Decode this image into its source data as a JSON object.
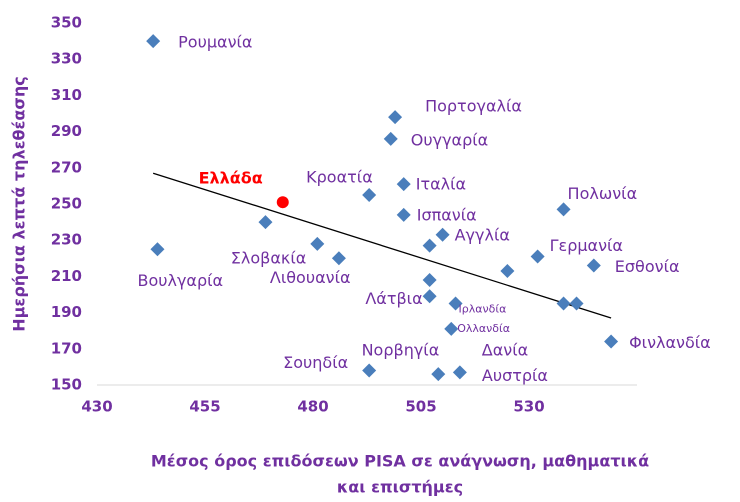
{
  "chart_data": {
    "type": "scatter",
    "x_label": "Μέσος όρος επιδόσεων PISA  σε ανάγνωση, μαθηματικά",
    "x_label_line2": "και επιστήμες",
    "y_label": "Ημερήσια λεπτά τηλεθέασης",
    "xlim": [
      430,
      555
    ],
    "xticks": [
      430,
      455,
      480,
      505,
      530
    ],
    "ylim": [
      150,
      350
    ],
    "yticks": [
      150,
      170,
      190,
      210,
      230,
      250,
      270,
      290,
      310,
      330,
      350
    ],
    "series": [
      {
        "color": "#4a7ebb",
        "x": [
          443,
          499,
          498,
          493,
          501,
          473,
          501,
          538,
          469,
          444,
          481,
          486,
          507,
          510,
          532,
          545,
          525,
          507,
          507,
          513,
          538,
          541,
          512,
          493,
          509,
          514,
          549
        ],
        "y": [
          340,
          298,
          286,
          255,
          261,
          251,
          244,
          247,
          240,
          225,
          228,
          220,
          227,
          233,
          221,
          216,
          213,
          208,
          199,
          195,
          195,
          195,
          181,
          158,
          156,
          157,
          174
        ],
        "labels": [
          "Ρουμανία",
          "Πορτογαλία",
          "Ουγγαρία",
          "Κροατία",
          "Ιταλία",
          "Ελλάδα",
          "Ισπανία",
          "Πολωνία",
          null,
          "Βουλγαρία",
          "Σλοβακία",
          "Λιθουανία",
          null,
          "Αγγλία",
          "Γερμανία",
          "Εσθονία",
          null,
          null,
          "Λάτβια",
          "Ιρλανδία",
          null,
          null,
          "Ολλανδία",
          "Σουηδία",
          "Νορβηγία",
          "Αυστρία",
          "Φινλανδία"
        ]
      }
    ],
    "highlight": {
      "label": "Ελλάδα",
      "color": "#ff0000"
    },
    "annotations": [
      "Δανία"
    ],
    "trendline": {
      "x": [
        443,
        549
      ],
      "y": [
        267,
        187
      ],
      "color": "#000000"
    }
  }
}
